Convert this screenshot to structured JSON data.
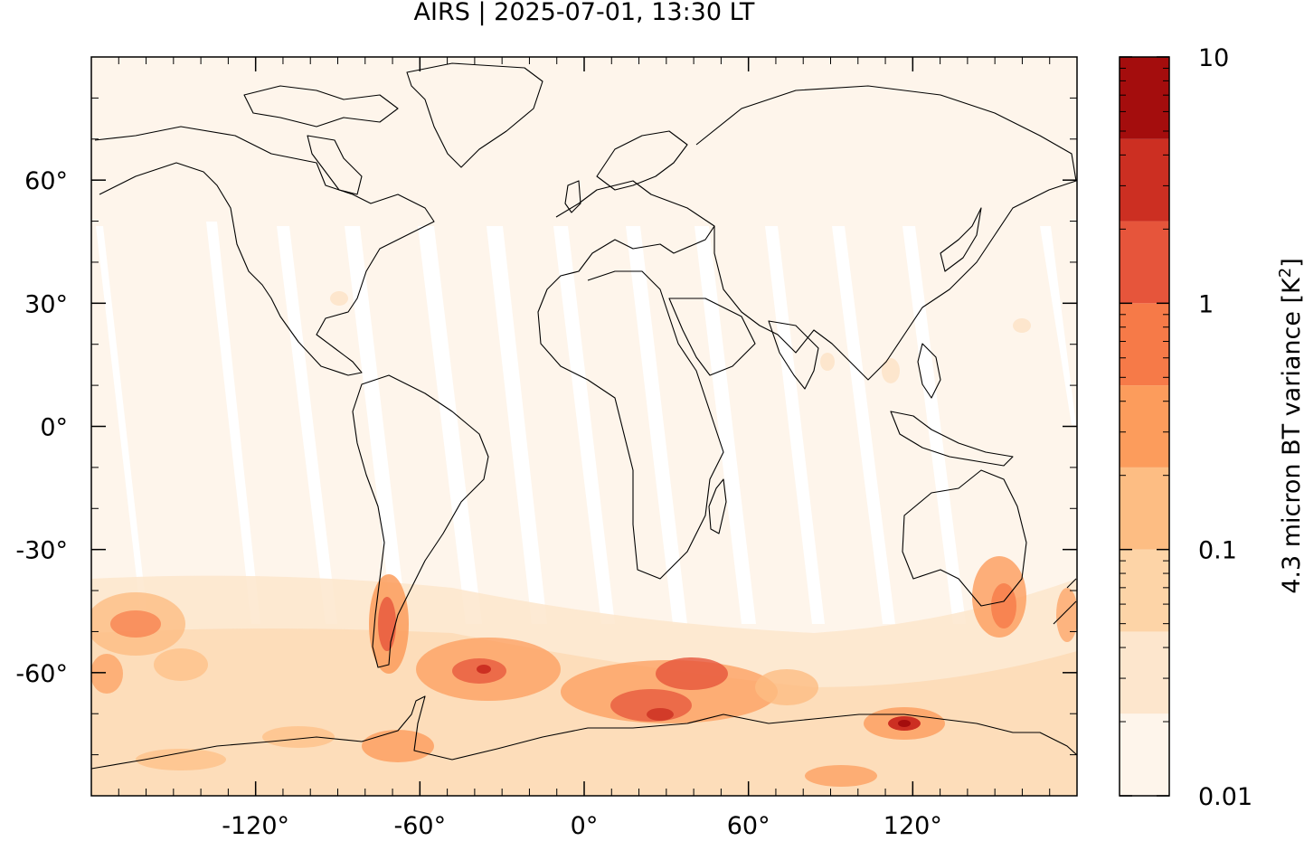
{
  "title": "AIRS | 2025-07-01, 13:30 LT",
  "map": {
    "projection": "equirectangular",
    "lon_range": [
      -180,
      180
    ],
    "lat_range": [
      -90,
      90
    ],
    "x_ticks": [
      {
        "value": -120,
        "label": "-120°"
      },
      {
        "value": -60,
        "label": "-60°"
      },
      {
        "value": 0,
        "label": "0°"
      },
      {
        "value": 60,
        "label": "60°"
      },
      {
        "value": 120,
        "label": "120°"
      }
    ],
    "y_ticks": [
      {
        "value": 60,
        "label": "60°"
      },
      {
        "value": 30,
        "label": "30°"
      },
      {
        "value": 0,
        "label": "0°"
      },
      {
        "value": -30,
        "label": "-30°"
      },
      {
        "value": -60,
        "label": "-60°"
      }
    ],
    "features": [
      "coastlines",
      "orbit-gaps",
      "variance-field"
    ]
  },
  "colorbar": {
    "label": "4.3 micron BT variance [K",
    "label_sup": "2",
    "label_end": "]",
    "scale": "log",
    "range": [
      0.01,
      10
    ],
    "ticks": [
      {
        "value": 10,
        "label": "10"
      },
      {
        "value": 1,
        "label": "1"
      },
      {
        "value": 0.1,
        "label": "0.1"
      },
      {
        "value": 0.01,
        "label": "0.01"
      }
    ],
    "colors": [
      "#fef5eb",
      "#fde6cd",
      "#fdd4a7",
      "#fdbd83",
      "#fc9c5c",
      "#f67a48",
      "#e6553b",
      "#cc2f22",
      "#a40d0d"
    ]
  }
}
